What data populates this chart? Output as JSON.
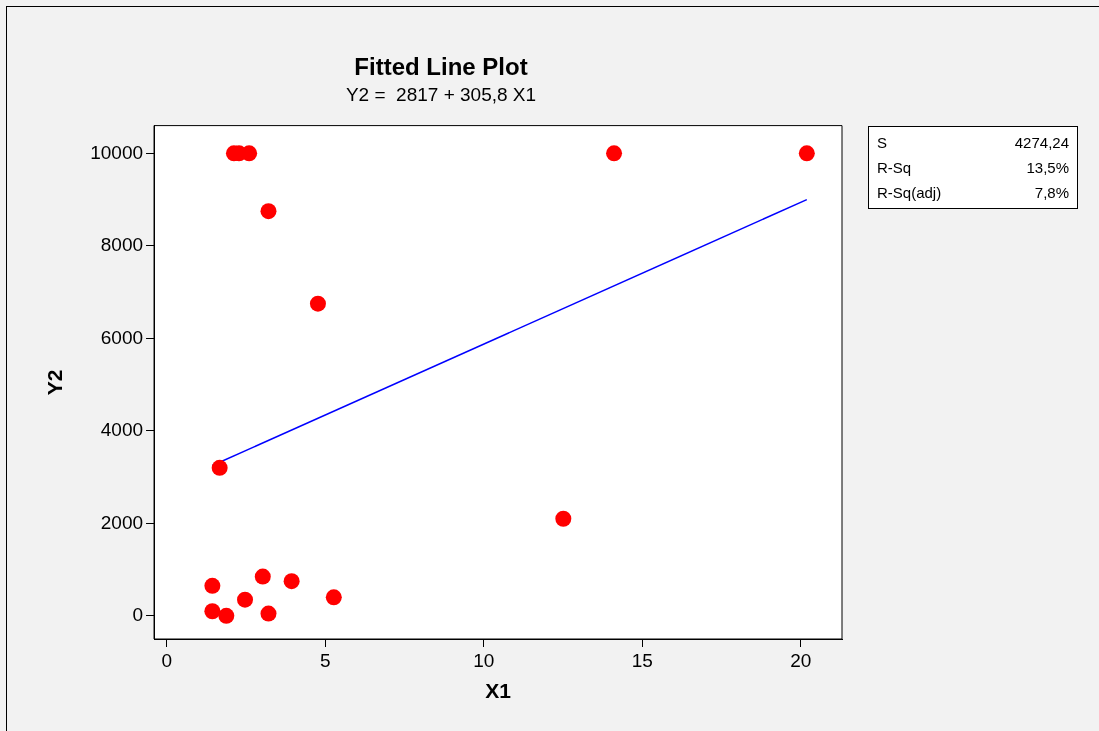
{
  "chart_data": {
    "type": "scatter",
    "title": "Fitted Line Plot",
    "subtitle": "Y2 =  2817 + 305,8 X1",
    "xlabel": "X1",
    "ylabel": "Y2",
    "xlim": [
      -0.4,
      21.3
    ],
    "xticks": [
      0,
      5,
      10,
      15,
      20
    ],
    "ylim": [
      -500,
      10600
    ],
    "yticks": [
      0,
      2000,
      4000,
      6000,
      8000,
      10000
    ],
    "grid": false,
    "legend": false,
    "marker": "circle",
    "series": [
      {
        "color": "#ff0000",
        "x": [
          2.12,
          2.28,
          2.6,
          14.11,
          20.19,
          3.21,
          4.77,
          1.67,
          12.51,
          1.44,
          1.44,
          1.88,
          2.47,
          3.03,
          3.21,
          3.94,
          5.27
        ],
        "values": [
          10000,
          10000,
          10000,
          10000,
          10000,
          8750,
          6750,
          3200,
          2100,
          650,
          100,
          0,
          350,
          850,
          50,
          750,
          400
        ]
      },
      {
        "type": "line",
        "color": "#0000ff",
        "marker": "none",
        "line_style": "solid",
        "x": [
          1.44,
          20.19
        ],
        "values": [
          3250,
          9000
        ]
      }
    ],
    "annotations": [
      "S",
      "4274,24",
      "R-Sq",
      "13,5%",
      "R-Sq(adj)",
      "7,8%"
    ]
  }
}
